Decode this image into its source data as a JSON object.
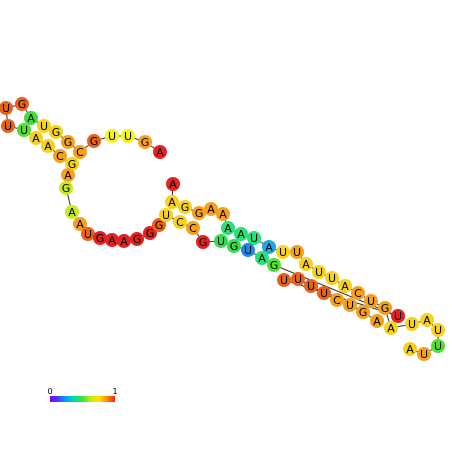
{
  "structure": {
    "nucleotides": [
      {
        "base": "U",
        "color": "#e8621a"
      },
      {
        "base": "U",
        "color": "#e8621a"
      },
      {
        "base": "G",
        "color": "#e8621a"
      },
      {
        "base": "A",
        "color": "#3fdc3a"
      },
      {
        "base": "U",
        "color": "#f6d21c"
      },
      {
        "base": "G",
        "color": "#f6d21c"
      },
      {
        "base": "G",
        "color": "#f6a11b"
      },
      {
        "base": "C",
        "color": "#f6a11b"
      },
      {
        "base": "G",
        "color": "#e8621a"
      },
      {
        "base": "U",
        "color": "#f7f51a"
      },
      {
        "base": "U",
        "color": "#f7f51a"
      },
      {
        "base": "G",
        "color": "#f6a11b"
      },
      {
        "base": "A",
        "color": "#e32222"
      },
      {
        "base": "U",
        "color": "#4fe030"
      },
      {
        "base": "A",
        "color": "#f6d21c"
      },
      {
        "base": "A",
        "color": "#f6d21c"
      },
      {
        "base": "C",
        "color": "#f6a11b"
      },
      {
        "base": "G",
        "color": "#f6d21c"
      },
      {
        "base": "A",
        "color": "#f6a11b"
      },
      {
        "base": "G",
        "color": "#c5ec1e"
      },
      {
        "base": "A",
        "color": "#c5ec1e"
      },
      {
        "base": "A",
        "color": "#f6a11b"
      },
      {
        "base": "U",
        "color": "#e8621a"
      },
      {
        "base": "G",
        "color": "#e32222"
      },
      {
        "base": "A",
        "color": "#e32222"
      },
      {
        "base": "A",
        "color": "#e32222"
      },
      {
        "base": "G",
        "color": "#e32222"
      },
      {
        "base": "G",
        "color": "#e32222"
      },
      {
        "base": "G",
        "color": "#e8621a"
      },
      {
        "base": "A",
        "color": "#e32222"
      },
      {
        "base": "A",
        "color": "#f6d21c"
      },
      {
        "base": "G",
        "color": "#f6d21c"
      },
      {
        "base": "G",
        "color": "#f6a11b"
      },
      {
        "base": "A",
        "color": "#f6a11b"
      },
      {
        "base": "A",
        "color": "#f6a11b"
      },
      {
        "base": "U",
        "color": "#f6d21c"
      },
      {
        "base": "C",
        "color": "#f6d21c"
      },
      {
        "base": "C",
        "color": "#f6a11b"
      },
      {
        "base": "G",
        "color": "#e32222"
      },
      {
        "base": "A",
        "color": "#28e07a"
      },
      {
        "base": "A",
        "color": "#28e07a"
      },
      {
        "base": "U",
        "color": "#28e07a"
      },
      {
        "base": "A",
        "color": "#1aa8e6"
      },
      {
        "base": "U",
        "color": "#f6d21c"
      },
      {
        "base": "U",
        "color": "#f6a11b"
      },
      {
        "base": "U",
        "color": "#38dd4f"
      },
      {
        "base": "G",
        "color": "#38dd4f"
      },
      {
        "base": "U",
        "color": "#1e88e5"
      },
      {
        "base": "A",
        "color": "#28e07a"
      },
      {
        "base": "G",
        "color": "#4fe030"
      },
      {
        "base": "A",
        "color": "#f6d21c"
      },
      {
        "base": "U",
        "color": "#f6d21c"
      },
      {
        "base": "U",
        "color": "#f6d21c"
      },
      {
        "base": "A",
        "color": "#f6d21c"
      },
      {
        "base": "C",
        "color": "#f6a11b"
      },
      {
        "base": "U",
        "color": "#f6a11b"
      },
      {
        "base": "G",
        "color": "#f6a11b"
      },
      {
        "base": "U",
        "color": "#e32222"
      },
      {
        "base": "U",
        "color": "#e8621a"
      },
      {
        "base": "U",
        "color": "#e8621a"
      },
      {
        "base": "U",
        "color": "#e8621a"
      },
      {
        "base": "U",
        "color": "#e8621a"
      },
      {
        "base": "C",
        "color": "#f6a11b"
      },
      {
        "base": "U",
        "color": "#f6a11b"
      },
      {
        "base": "G",
        "color": "#f6a11b"
      },
      {
        "base": "A",
        "color": "#f6a11b"
      },
      {
        "base": "A",
        "color": "#f6d21c"
      },
      {
        "base": "U",
        "color": "#f6d21c"
      },
      {
        "base": "A",
        "color": "#f6d21c"
      },
      {
        "base": "U",
        "color": "#f6d21c"
      },
      {
        "base": "U",
        "color": "#4fe030"
      },
      {
        "base": "U",
        "color": "#f6a11b"
      },
      {
        "base": "A",
        "color": "#f6d21c"
      }
    ]
  },
  "scale": {
    "min_label": "0",
    "max_label": "1",
    "colors": [
      "#8000ff",
      "#4040ff",
      "#00a0ff",
      "#00e0a0",
      "#40e040",
      "#c0f000",
      "#ffe000",
      "#ff9000",
      "#ff2000"
    ]
  }
}
